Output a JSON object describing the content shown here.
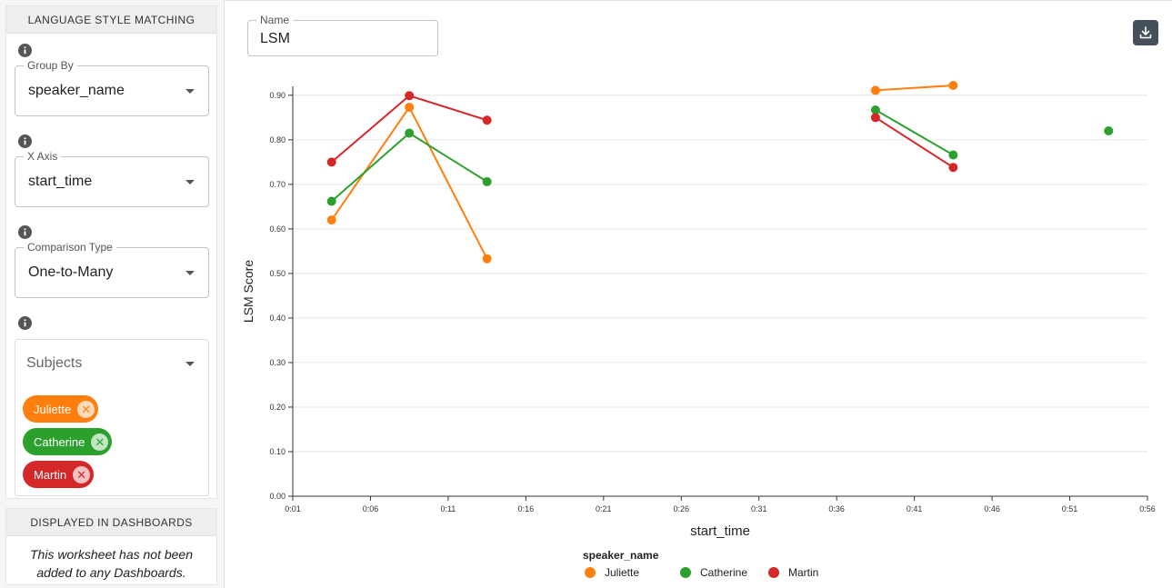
{
  "sidebar": {
    "section_title": "LANGUAGE STYLE MATCHING",
    "group_by": {
      "label": "Group By",
      "value": "speaker_name"
    },
    "x_axis": {
      "label": "X Axis",
      "value": "start_time"
    },
    "comparison_type": {
      "label": "Comparison Type",
      "value": "One-to-Many"
    },
    "subjects": {
      "placeholder": "Subjects",
      "chips": [
        {
          "label": "Juliette",
          "color": "#ff7f0e"
        },
        {
          "label": "Catherine",
          "color": "#2ca02c"
        },
        {
          "label": "Martin",
          "color": "#d62728"
        }
      ]
    },
    "dashboards": {
      "title": "DISPLAYED IN DASHBOARDS",
      "message": "This worksheet has not been added to any Dashboards."
    }
  },
  "main": {
    "name_field": {
      "label": "Name",
      "value": "LSM"
    },
    "download_icon": "download-icon"
  },
  "chart_data": {
    "type": "line",
    "xlabel": "start_time",
    "ylabel": "LSM Score",
    "ylim": [
      0,
      0.92
    ],
    "xlim": [
      "0:01",
      "0:56"
    ],
    "x_ticks": [
      "0:01",
      "0:06",
      "0:11",
      "0:16",
      "0:21",
      "0:26",
      "0:31",
      "0:36",
      "0:41",
      "0:46",
      "0:51",
      "0:56"
    ],
    "y_ticks": [
      "0.00",
      "0.10",
      "0.20",
      "0.30",
      "0.40",
      "0.50",
      "0.60",
      "0.70",
      "0.80",
      "0.90"
    ],
    "legend_title": "speaker_name",
    "legend_position": "bottom-center",
    "grid": "horizontal",
    "series": [
      {
        "name": "Juliette",
        "color": "#ff7f0e",
        "segments": [
          [
            [
              "0:03.5",
              0.62
            ],
            [
              "0:08.5",
              0.873
            ],
            [
              "0:13.5",
              0.533
            ]
          ],
          [
            [
              "0:38.5",
              0.911
            ],
            [
              "0:43.5",
              0.922
            ]
          ]
        ]
      },
      {
        "name": "Catherine",
        "color": "#2ca02c",
        "segments": [
          [
            [
              "0:03.5",
              0.662
            ],
            [
              "0:08.5",
              0.815
            ],
            [
              "0:13.5",
              0.706
            ]
          ],
          [
            [
              "0:38.5",
              0.867
            ],
            [
              "0:43.5",
              0.766
            ]
          ],
          [
            [
              "0:53.5",
              0.82
            ]
          ]
        ]
      },
      {
        "name": "Martin",
        "color": "#d62728",
        "segments": [
          [
            [
              "0:03.5",
              0.75
            ],
            [
              "0:08.5",
              0.899
            ],
            [
              "0:13.5",
              0.844
            ]
          ],
          [
            [
              "0:38.5",
              0.85
            ],
            [
              "0:43.5",
              0.738
            ]
          ]
        ]
      }
    ]
  }
}
